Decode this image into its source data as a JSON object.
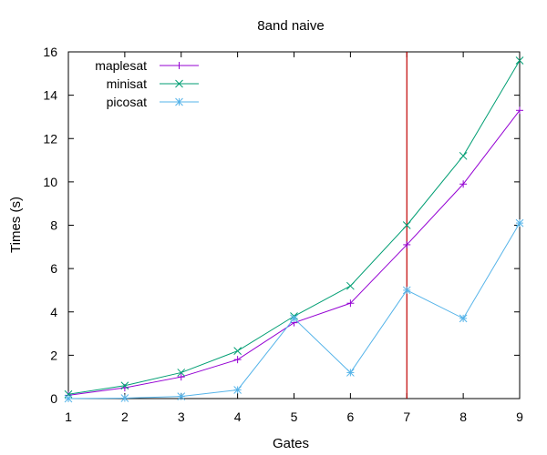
{
  "chart_data": {
    "type": "line",
    "title": "8and naive",
    "xlabel": "Gates",
    "ylabel": "Times (s)",
    "xlim": [
      1,
      9
    ],
    "ylim": [
      0,
      16
    ],
    "xticks": [
      1,
      2,
      3,
      4,
      5,
      6,
      7,
      8,
      9
    ],
    "yticks": [
      0,
      2,
      4,
      6,
      8,
      10,
      12,
      14,
      16
    ],
    "grid": false,
    "legend_position": "top-left",
    "x": [
      1,
      2,
      3,
      4,
      5,
      6,
      7,
      8,
      9
    ],
    "series": [
      {
        "name": "maplesat",
        "color": "#9400d3",
        "marker": "plus",
        "values": [
          0.15,
          0.5,
          1.0,
          1.8,
          3.5,
          4.4,
          7.1,
          9.9,
          13.3
        ]
      },
      {
        "name": "minisat",
        "color": "#009e73",
        "marker": "cross",
        "values": [
          0.2,
          0.6,
          1.2,
          2.2,
          3.8,
          5.2,
          8.0,
          11.2,
          15.6
        ]
      },
      {
        "name": "picosat",
        "color": "#56b4e9",
        "marker": "star",
        "values": [
          0.0,
          0.02,
          0.1,
          0.4,
          3.7,
          1.2,
          5.0,
          3.7,
          8.1
        ]
      }
    ],
    "vertical_line": {
      "x": 7,
      "color": "#c00000"
    }
  }
}
